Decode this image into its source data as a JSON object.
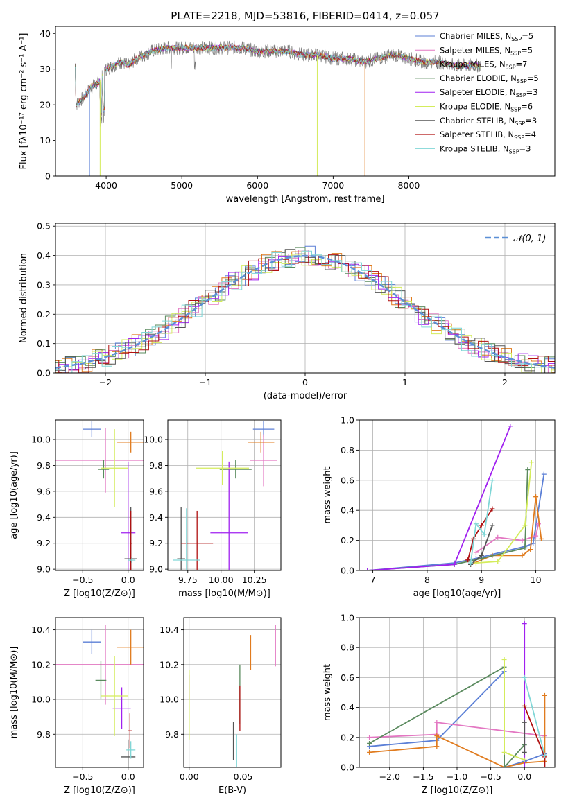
{
  "title": "PLATE=2218, MJD=53816, FIBERID=0414, z=0.057",
  "colors": {
    "Chabrier MILES": "#5b7fd6",
    "Salpeter MILES": "#e377c2",
    "Kroupa MILES": "#e07b1e",
    "Chabrier ELODIE": "#5a8a5e",
    "Salpeter ELODIE": "#a020f0",
    "Kroupa ELODIE": "#d4ec5c",
    "Chabrier STELIB": "#555555",
    "Salpeter STELIB": "#b01010",
    "Kroupa STELIB": "#7fd6d6"
  },
  "chart_data": [
    {
      "type": "line",
      "title": "PLATE=2218, MJD=53816, FIBERID=0414, z=0.057",
      "xlabel": "wavelength [Angstrom, rest frame]",
      "ylabel": "Flux [fλ10⁻¹⁷ erg cm⁻² s⁻¹ A⁻¹]",
      "xlim": [
        3330,
        9930
      ],
      "ylim": [
        0,
        42
      ],
      "xticks": [
        4000,
        5000,
        6000,
        7000,
        8000
      ],
      "yticks": [
        0,
        10,
        20,
        30,
        40
      ],
      "grid": false,
      "legend_position": "top-right",
      "legend": [
        "Chabrier MILES, N_SSP=5",
        "Salpeter MILES, N_SSP=5",
        "Kroupa MILES, N_SSP=7",
        "Chabrier ELODIE, N_SSP=5",
        "Salpeter ELODIE, N_SSP=3",
        "Kroupa ELODIE, N_SSP=6",
        "Chabrier STELIB, N_SSP=3",
        "Salpeter STELIB, N_SSP=4",
        "Kroupa STELIB, N_SSP=3"
      ],
      "spectrum_continuum": [
        [
          3600,
          20
        ],
        [
          3700,
          22
        ],
        [
          3800,
          25
        ],
        [
          3900,
          26
        ],
        [
          4000,
          30
        ],
        [
          4100,
          31
        ],
        [
          4200,
          32
        ],
        [
          4300,
          31
        ],
        [
          4400,
          33
        ],
        [
          4500,
          34
        ],
        [
          4600,
          35
        ],
        [
          4800,
          36
        ],
        [
          5000,
          36
        ],
        [
          5200,
          36
        ],
        [
          5400,
          36
        ],
        [
          5600,
          36
        ],
        [
          5800,
          36
        ],
        [
          6000,
          35
        ],
        [
          6200,
          35
        ],
        [
          6400,
          35
        ],
        [
          6600,
          34
        ],
        [
          6800,
          34
        ],
        [
          7000,
          33
        ],
        [
          7200,
          33
        ],
        [
          7400,
          32
        ],
        [
          7600,
          33
        ],
        [
          7800,
          34
        ],
        [
          8000,
          33
        ],
        [
          8200,
          32
        ],
        [
          8400,
          32
        ],
        [
          8600,
          31
        ],
        [
          8800,
          31
        ],
        [
          8950,
          31
        ]
      ]
    },
    {
      "type": "step",
      "xlabel": "(data-model)/error",
      "ylabel": "Normed distribution",
      "xlim": [
        -2.5,
        2.5
      ],
      "ylim": [
        0,
        0.51
      ],
      "xticks": [
        -2,
        -1,
        0,
        1,
        2
      ],
      "yticks": [
        0.0,
        0.1,
        0.2,
        0.3,
        0.4,
        0.5
      ],
      "grid": true,
      "legend_position": "top-right",
      "legend": [
        "𝒩(0, 1)"
      ],
      "gaussian": {
        "mean": 0,
        "sigma": 1
      },
      "bin_width": 0.1
    },
    {
      "type": "scatter-errorbar",
      "xlabel": "Z [log10(Z/Z⊙)]",
      "ylabel": "age  [log10(age/yr)]",
      "xlim": [
        -0.8,
        0.17
      ],
      "ylim": [
        8.99,
        10.15
      ],
      "xticks": [
        -0.5,
        0.0
      ],
      "yticks": [
        9.0,
        9.2,
        9.4,
        9.6,
        9.8,
        10.0
      ],
      "grid": true,
      "points": [
        {
          "model": "Chabrier MILES",
          "x": -0.4,
          "y": 10.08,
          "xerr": 0.1,
          "yerr": 0.06
        },
        {
          "model": "Salpeter MILES",
          "x": -0.25,
          "y": 9.84,
          "xerr": 0.55,
          "yerr": 0.25
        },
        {
          "model": "Kroupa MILES",
          "x": 0.03,
          "y": 9.98,
          "xerr": 0.15,
          "yerr": 0.08
        },
        {
          "model": "Chabrier ELODIE",
          "x": -0.27,
          "y": 9.77,
          "xerr": 0.06,
          "yerr": 0.07
        },
        {
          "model": "Salpeter ELODIE",
          "x": 0.0,
          "y": 9.28,
          "xerr": 0.08,
          "yerr": 0.55
        },
        {
          "model": "Kroupa ELODIE",
          "x": -0.15,
          "y": 9.78,
          "xerr": 0.15,
          "yerr": 0.3
        },
        {
          "model": "Chabrier STELIB",
          "x": 0.03,
          "y": 9.08,
          "xerr": 0.07,
          "yerr": 0.4
        },
        {
          "model": "Salpeter STELIB",
          "x": 0.03,
          "y": 9.2,
          "xerr": 0.01,
          "yerr": 0.25
        },
        {
          "model": "Kroupa STELIB",
          "x": 0.04,
          "y": 9.07,
          "xerr": 0.04,
          "yerr": 0.02
        }
      ]
    },
    {
      "type": "scatter-errorbar",
      "xlabel": "mass [log10(M/M⊙)]",
      "xlim": [
        9.6,
        10.45
      ],
      "ylim": [
        8.99,
        10.15
      ],
      "xticks": [
        9.75,
        10.0,
        10.25
      ],
      "yticks": [
        9.0,
        9.2,
        9.4,
        9.6,
        9.8,
        10.0
      ],
      "grid": true,
      "points": [
        {
          "model": "Chabrier MILES",
          "x": 10.32,
          "y": 10.08,
          "xerr": 0.08,
          "yerr": 0.06
        },
        {
          "model": "Salpeter MILES",
          "x": 10.32,
          "y": 9.84,
          "xerr": 0.1,
          "yerr": 0.2
        },
        {
          "model": "Kroupa MILES",
          "x": 10.3,
          "y": 9.98,
          "xerr": 0.1,
          "yerr": 0.08
        },
        {
          "model": "Chabrier ELODIE",
          "x": 10.11,
          "y": 9.77,
          "xerr": 0.12,
          "yerr": 0.07
        },
        {
          "model": "Salpeter ELODIE",
          "x": 10.06,
          "y": 9.28,
          "xerr": 0.14,
          "yerr": 0.55
        },
        {
          "model": "Kroupa ELODIE",
          "x": 10.01,
          "y": 9.78,
          "xerr": 0.2,
          "yerr": 0.13
        },
        {
          "model": "Chabrier STELIB",
          "x": 9.7,
          "y": 9.08,
          "xerr": 0.03,
          "yerr": 0.4
        },
        {
          "model": "Salpeter STELIB",
          "x": 9.82,
          "y": 9.2,
          "xerr": 0.12,
          "yerr": 0.25
        },
        {
          "model": "Kroupa STELIB",
          "x": 9.74,
          "y": 9.07,
          "xerr": 0.1,
          "yerr": 0.4
        }
      ]
    },
    {
      "type": "line",
      "xlabel": "age  [log10(age/yr)]",
      "ylabel": "mass weight",
      "xlim": [
        6.75,
        10.35
      ],
      "ylim": [
        0,
        1.0
      ],
      "xticks": [
        7,
        8,
        9,
        10
      ],
      "yticks": [
        0.0,
        0.2,
        0.4,
        0.6,
        0.8,
        1.0
      ],
      "grid": true,
      "series": [
        {
          "model": "Chabrier MILES",
          "points": [
            [
              6.9,
              0.0
            ],
            [
              8.5,
              0.05
            ],
            [
              8.9,
              0.08
            ],
            [
              9.8,
              0.16
            ],
            [
              9.95,
              0.18
            ],
            [
              10.15,
              0.64
            ]
          ]
        },
        {
          "model": "Salpeter MILES",
          "points": [
            [
              8.9,
              0.12
            ],
            [
              9.3,
              0.22
            ],
            [
              9.75,
              0.2
            ],
            [
              10.0,
              0.23
            ],
            [
              10.05,
              0.31
            ]
          ]
        },
        {
          "model": "Kroupa MILES",
          "points": [
            [
              8.8,
              0.04
            ],
            [
              9.2,
              0.1
            ],
            [
              9.75,
              0.1
            ],
            [
              9.9,
              0.14
            ],
            [
              10.0,
              0.49
            ],
            [
              10.1,
              0.21
            ]
          ]
        },
        {
          "model": "Chabrier ELODIE",
          "points": [
            [
              6.9,
              0.0
            ],
            [
              8.5,
              0.04
            ],
            [
              9.0,
              0.08
            ],
            [
              9.8,
              0.15
            ],
            [
              9.85,
              0.67
            ]
          ]
        },
        {
          "model": "Salpeter ELODIE",
          "points": [
            [
              6.9,
              0.0
            ],
            [
              8.5,
              0.04
            ],
            [
              9.53,
              0.96
            ]
          ]
        },
        {
          "model": "Kroupa ELODIE",
          "points": [
            [
              8.9,
              0.05
            ],
            [
              9.3,
              0.06
            ],
            [
              9.8,
              0.3
            ],
            [
              9.92,
              0.72
            ]
          ]
        },
        {
          "model": "Chabrier STELIB",
          "points": [
            [
              8.8,
              0.04
            ],
            [
              9.0,
              0.1
            ],
            [
              9.2,
              0.3
            ]
          ]
        },
        {
          "model": "Salpeter STELIB",
          "points": [
            [
              8.75,
              0.07
            ],
            [
              8.85,
              0.21
            ],
            [
              9.0,
              0.3
            ],
            [
              9.2,
              0.41
            ]
          ]
        },
        {
          "model": "Kroupa STELIB",
          "points": [
            [
              8.8,
              0.05
            ],
            [
              8.9,
              0.31
            ],
            [
              9.05,
              0.24
            ],
            [
              9.2,
              0.6
            ]
          ]
        }
      ]
    },
    {
      "type": "scatter-errorbar",
      "xlabel": "Z [log10(Z/Z⊙)]",
      "ylabel": "mass [log10(M/M⊙)]",
      "xlim": [
        -0.8,
        0.17
      ],
      "ylim": [
        9.61,
        10.47
      ],
      "xticks": [
        -0.5,
        0.0
      ],
      "yticks": [
        9.8,
        10.0,
        10.2,
        10.4
      ],
      "grid": true,
      "points": [
        {
          "model": "Chabrier MILES",
          "x": -0.4,
          "y": 10.33,
          "xerr": 0.1,
          "yerr": 0.07
        },
        {
          "model": "Salpeter MILES",
          "x": -0.25,
          "y": 10.2,
          "xerr": 0.55,
          "yerr": 0.23
        },
        {
          "model": "Kroupa MILES",
          "x": 0.03,
          "y": 10.3,
          "xerr": 0.15,
          "yerr": 0.1
        },
        {
          "model": "Chabrier ELODIE",
          "x": -0.3,
          "y": 10.11,
          "xerr": 0.06,
          "yerr": 0.11
        },
        {
          "model": "Salpeter ELODIE",
          "x": -0.07,
          "y": 9.95,
          "xerr": 0.1,
          "yerr": 0.12
        },
        {
          "model": "Kroupa ELODIE",
          "x": -0.15,
          "y": 10.02,
          "xerr": 0.15,
          "yerr": 0.23
        },
        {
          "model": "Chabrier STELIB",
          "x": 0.0,
          "y": 9.67,
          "xerr": 0.08,
          "yerr": 0.1
        },
        {
          "model": "Salpeter STELIB",
          "x": 0.02,
          "y": 9.82,
          "xerr": 0.02,
          "yerr": 0.1
        },
        {
          "model": "Kroupa STELIB",
          "x": 0.03,
          "y": 9.71,
          "xerr": 0.05,
          "yerr": 0.05
        }
      ]
    },
    {
      "type": "errorbar",
      "xlabel": "E(B-V)",
      "xlim": [
        -0.005,
        0.085
      ],
      "ylim": [
        9.61,
        10.47
      ],
      "xticks": [
        0.0,
        0.05
      ],
      "yticks": [
        9.8,
        10.0,
        10.2,
        10.4
      ],
      "grid": true,
      "points": [
        {
          "model": "Salpeter MILES",
          "x": 0.08,
          "y": 10.31,
          "yerr": 0.12
        },
        {
          "model": "Kroupa MILES",
          "x": 0.057,
          "y": 10.27,
          "yerr": 0.1
        },
        {
          "model": "Chabrier ELODIE",
          "x": 0.047,
          "y": 10.03,
          "yerr": 0.17
        },
        {
          "model": "Salpeter STELIB",
          "x": 0.047,
          "y": 9.95,
          "yerr": 0.13
        },
        {
          "model": "Salpeter ELODIE",
          "x": 0.0,
          "y": 10.07,
          "yerr": 0.07
        },
        {
          "model": "Kroupa ELODIE",
          "x": 0.0,
          "y": 9.97,
          "yerr": 0.2
        },
        {
          "model": "Chabrier STELIB",
          "x": 0.041,
          "y": 9.76,
          "yerr": 0.11
        },
        {
          "model": "Kroupa STELIB",
          "x": 0.044,
          "y": 9.7,
          "yerr": 0.1
        }
      ]
    },
    {
      "type": "line",
      "xlabel": "Z [log10(Z/Z⊙)]",
      "ylabel": "mass weight",
      "xlim": [
        -2.45,
        0.45
      ],
      "ylim": [
        0,
        1.0
      ],
      "xticks": [
        -2.0,
        -1.5,
        -1.0,
        -0.5,
        0.0
      ],
      "yticks": [
        0.0,
        0.2,
        0.4,
        0.6,
        0.8,
        1.0
      ],
      "grid": true,
      "series": [
        {
          "model": "Chabrier MILES",
          "points": [
            [
              -2.3,
              0.14
            ],
            [
              -1.3,
              0.18
            ],
            [
              -0.3,
              0.64
            ],
            [
              -0.3,
              0.0
            ],
            [
              0.0,
              0.04
            ],
            [
              0.3,
              0.09
            ]
          ]
        },
        {
          "model": "Salpeter MILES",
          "points": [
            [
              -2.3,
              0.2
            ],
            [
              -1.3,
              0.22
            ],
            [
              -1.3,
              0.3
            ],
            [
              0.3,
              0.21
            ]
          ]
        },
        {
          "model": "Kroupa MILES",
          "points": [
            [
              -2.3,
              0.1
            ],
            [
              -1.3,
              0.14
            ],
            [
              -1.3,
              0.21
            ],
            [
              -0.3,
              0.0
            ],
            [
              0.0,
              0.03
            ],
            [
              0.3,
              0.04
            ],
            [
              0.3,
              0.48
            ]
          ]
        },
        {
          "model": "Chabrier ELODIE",
          "points": [
            [
              -2.3,
              0.16
            ],
            [
              -0.3,
              0.67
            ],
            [
              -0.3,
              0.0
            ],
            [
              0.0,
              0.15
            ]
          ]
        },
        {
          "model": "Salpeter ELODIE",
          "points": [
            [
              0.0,
              0.0
            ],
            [
              0.0,
              0.96
            ]
          ]
        },
        {
          "model": "Kroupa ELODIE",
          "points": [
            [
              -0.3,
              0.72
            ],
            [
              -0.3,
              0.1
            ],
            [
              0.0,
              0.05
            ]
          ]
        },
        {
          "model": "Chabrier STELIB",
          "points": [
            [
              0.0,
              0.1
            ],
            [
              0.0,
              0.3
            ]
          ]
        },
        {
          "model": "Salpeter STELIB",
          "points": [
            [
              0.0,
              0.41
            ],
            [
              0.3,
              0.07
            ],
            [
              0.3,
              0.0
            ]
          ]
        },
        {
          "model": "Kroupa STELIB",
          "points": [
            [
              0.0,
              0.6
            ],
            [
              0.3,
              0.08
            ]
          ]
        }
      ]
    }
  ]
}
